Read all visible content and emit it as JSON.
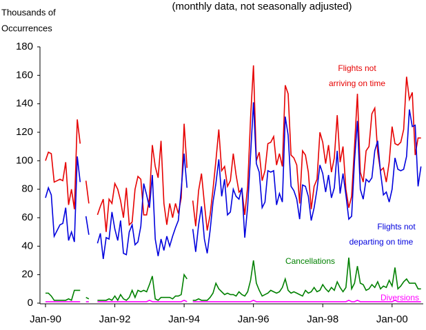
{
  "chart_data": {
    "type": "line",
    "title": "(monthly data, not seasonally adjusted)",
    "y_label": [
      "Thousands of",
      "Occurrences"
    ],
    "categories": [
      "Jan-90",
      null,
      null,
      null,
      null,
      null,
      null,
      null,
      null,
      null,
      null,
      null,
      null,
      null,
      null,
      null,
      null,
      null,
      null,
      null,
      null,
      null,
      null,
      null,
      "Jan-92",
      null,
      null,
      null,
      null,
      null,
      null,
      null,
      null,
      null,
      null,
      null,
      null,
      null,
      null,
      null,
      null,
      null,
      null,
      null,
      null,
      null,
      null,
      null,
      "Jan-94",
      null,
      null,
      null,
      null,
      null,
      null,
      null,
      null,
      null,
      null,
      null,
      null,
      null,
      null,
      null,
      null,
      null,
      null,
      null,
      null,
      null,
      null,
      null,
      "Jan-96",
      null,
      null,
      null,
      null,
      null,
      null,
      null,
      null,
      null,
      null,
      null,
      null,
      null,
      null,
      null,
      null,
      null,
      null,
      null,
      null,
      null,
      null,
      null,
      "Jan-98",
      null,
      null,
      null,
      null,
      null,
      null,
      null,
      null,
      null,
      null,
      null,
      null,
      null,
      null,
      null,
      null,
      null,
      null,
      null,
      null,
      null,
      null,
      null,
      "Jan-00",
      null,
      null,
      null,
      null,
      null,
      null,
      null,
      null,
      null,
      null
    ],
    "ylim": [
      0,
      180
    ],
    "yticks": [
      0,
      20,
      40,
      60,
      80,
      100,
      120,
      140,
      160,
      180
    ],
    "grid": false,
    "series": [
      {
        "name": "Flights not arriving on time",
        "label": [
          "Flights not",
          "arriving on time"
        ],
        "color": "#e60000",
        "values": [
          100,
          106,
          105,
          85,
          86,
          87,
          86,
          99,
          69,
          80,
          66,
          129,
          112,
          null,
          86,
          70,
          null,
          null,
          62,
          68,
          73,
          50,
          73,
          70,
          84,
          80,
          72,
          60,
          81,
          55,
          57,
          80,
          89,
          87,
          62,
          62,
          74,
          111,
          96,
          88,
          114,
          70,
          55,
          70,
          60,
          70,
          63,
          74,
          126,
          95,
          null,
          72,
          54,
          79,
          91,
          70,
          51,
          62,
          80,
          100,
          122,
          93,
          96,
          82,
          86,
          105,
          90,
          78,
          80,
          62,
          82,
          130,
          167,
          100,
          106,
          86,
          93,
          112,
          113,
          117,
          97,
          105,
          96,
          153,
          147,
          104,
          102,
          97,
          70,
          107,
          104,
          92,
          66,
          82,
          87,
          120,
          113,
          98,
          111,
          92,
          102,
          132,
          99,
          110,
          80,
          67,
          75,
          110,
          147,
          92,
          85,
          107,
          110,
          133,
          137,
          106,
          93,
          95,
          85,
          99,
          124,
          112,
          111,
          113,
          122,
          159,
          143,
          148,
          104,
          116,
          116
        ]
      },
      {
        "name": "Flights not departing on time",
        "label": [
          "Flights not",
          "departing on time"
        ],
        "color": "#0000dd",
        "values": [
          74,
          81,
          76,
          47,
          51,
          55,
          56,
          67,
          44,
          50,
          43,
          103,
          85,
          null,
          61,
          48,
          null,
          null,
          42,
          49,
          31,
          46,
          45,
          64,
          52,
          44,
          58,
          35,
          34,
          50,
          55,
          41,
          43,
          54,
          84,
          76,
          67,
          90,
          45,
          33,
          45,
          37,
          47,
          40,
          47,
          53,
          58,
          80,
          105,
          81,
          null,
          52,
          36,
          55,
          68,
          45,
          35,
          51,
          71,
          84,
          101,
          75,
          87,
          62,
          64,
          80,
          75,
          73,
          81,
          46,
          68,
          104,
          141,
          98,
          92,
          67,
          71,
          93,
          92,
          93,
          69,
          77,
          71,
          131,
          118,
          82,
          79,
          73,
          59,
          83,
          82,
          75,
          58,
          67,
          80,
          97,
          91,
          78,
          90,
          74,
          81,
          107,
          77,
          91,
          76,
          59,
          61,
          100,
          128,
          80,
          73,
          87,
          85,
          88,
          107,
          114,
          92,
          76,
          78,
          71,
          80,
          102,
          94,
          93,
          94,
          103,
          136,
          124,
          125,
          82,
          96
        ]
      },
      {
        "name": "Cancellations",
        "label": [
          "Cancellations"
        ],
        "color": "#008000",
        "values": [
          7,
          7,
          5,
          2,
          2,
          2,
          2,
          2,
          3,
          2,
          9,
          9,
          9,
          null,
          4,
          3,
          null,
          null,
          2,
          2,
          2,
          2,
          3,
          2,
          5,
          2,
          6,
          3,
          2,
          4,
          9,
          4,
          9,
          8,
          9,
          8,
          13,
          19,
          3,
          2,
          4,
          4,
          4,
          4,
          3,
          5,
          5,
          6,
          20,
          17,
          null,
          2,
          2,
          3,
          2,
          2,
          2,
          4,
          7,
          14,
          10,
          8,
          6,
          7,
          6,
          6,
          5,
          8,
          6,
          5,
          8,
          16,
          30,
          14,
          9,
          5,
          6,
          7,
          9,
          8,
          7,
          8,
          11,
          17,
          9,
          7,
          8,
          7,
          6,
          5,
          9,
          7,
          8,
          11,
          8,
          9,
          13,
          10,
          8,
          11,
          9,
          15,
          11,
          8,
          11,
          32,
          10,
          14,
          26,
          14,
          13,
          9,
          10,
          13,
          11,
          15,
          10,
          12,
          11,
          16,
          12,
          25,
          10,
          12,
          15,
          17,
          14,
          14,
          14,
          10,
          10
        ]
      },
      {
        "name": "Diversions",
        "label": [
          "Diversions"
        ],
        "color": "#ff00ff",
        "values": [
          1,
          1,
          1,
          1,
          1,
          1,
          1,
          1,
          1,
          1,
          1,
          1,
          1,
          null,
          1,
          1,
          null,
          null,
          1,
          1,
          1,
          1,
          1,
          1,
          1,
          1,
          1,
          1,
          1,
          1,
          1,
          1,
          1,
          1,
          1,
          1,
          2,
          1,
          1,
          1,
          1,
          1,
          1,
          1,
          1,
          1,
          1,
          1,
          2,
          1,
          null,
          1,
          1,
          1,
          1,
          1,
          1,
          1,
          1,
          1,
          1,
          1,
          1,
          1,
          1,
          1,
          1,
          1,
          1,
          1,
          1,
          1,
          2,
          1,
          1,
          1,
          1,
          1,
          1,
          1,
          1,
          1,
          1,
          1,
          1,
          1,
          1,
          1,
          1,
          1,
          1,
          1,
          1,
          1,
          1,
          1,
          1,
          1,
          1,
          1,
          1,
          1,
          1,
          1,
          1,
          2,
          1,
          1,
          2,
          1,
          1,
          1,
          1,
          1,
          1,
          1,
          1,
          1,
          1,
          1,
          1,
          2,
          1,
          1,
          1,
          1,
          1,
          1,
          1,
          1,
          1
        ]
      }
    ]
  }
}
